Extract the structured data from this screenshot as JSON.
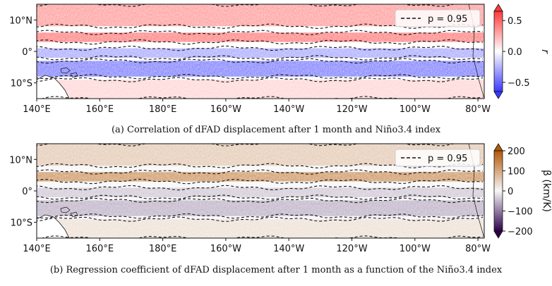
{
  "chart_data": [
    {
      "type": "heatmap",
      "panel_id": "a",
      "caption": "(a) Correlation of dFAD displacement after 1 month and Niño3.4 index",
      "x_ticks": [
        "140°E",
        "160°E",
        "180°E",
        "160°W",
        "140°W",
        "120°W",
        "100°W",
        "80°W"
      ],
      "x_tick_lon": [
        140,
        160,
        180,
        200,
        220,
        240,
        260,
        280
      ],
      "x_range": [
        140,
        282
      ],
      "y_ticks": [
        "10°N",
        "0°",
        "10°S"
      ],
      "y_tick_lat": [
        10,
        0,
        -10
      ],
      "y_range": [
        -15,
        15
      ],
      "legend_label": "p = 0.95",
      "colorbar": {
        "label": "r",
        "colormap": "bwr",
        "ticks": [
          "0.5",
          "0.0",
          "−0.5"
        ],
        "tick_values": [
          0.5,
          0.0,
          -0.5
        ],
        "range": [
          -0.65,
          0.65
        ],
        "extend": "both",
        "colors": {
          "low": "#3a3aff",
          "mid": "#ffffff",
          "high": "#ff3a3a"
        }
      },
      "field_bands": [
        {
          "lat_from": 8,
          "lat_to": 15,
          "value": 0.35
        },
        {
          "lat_from": 3,
          "lat_to": 6,
          "value": 0.45
        },
        {
          "lat_from": -2,
          "lat_to": 1,
          "value": -0.3
        },
        {
          "lat_from": -8,
          "lat_to": -3,
          "value": -0.45
        },
        {
          "lat_from": -15,
          "lat_to": -9,
          "value": 0.15
        }
      ]
    },
    {
      "type": "heatmap",
      "panel_id": "b",
      "caption": "(b) Regression coefficient of dFAD displacement after 1 month as a function of the Niño3.4 index",
      "x_ticks": [
        "140°E",
        "160°E",
        "180°E",
        "160°W",
        "140°W",
        "120°W",
        "100°W",
        "80°W"
      ],
      "x_tick_lon": [
        140,
        160,
        180,
        200,
        220,
        240,
        260,
        280
      ],
      "x_range": [
        140,
        282
      ],
      "y_ticks": [
        "10°N",
        "0°",
        "10°S"
      ],
      "y_tick_lat": [
        10,
        0,
        -10
      ],
      "y_range": [
        -15,
        15
      ],
      "legend_label": "p = 0.95",
      "colorbar": {
        "label": "β (km/K)",
        "colormap": "PuOr_r",
        "ticks": [
          "200",
          "100",
          "0",
          "−100",
          "−200"
        ],
        "tick_values": [
          200,
          100,
          0,
          -100,
          -200
        ],
        "range": [
          -200,
          200
        ],
        "extend": "both",
        "colors": {
          "low": "#2d004b",
          "mid": "#f7f7f7",
          "high": "#b35806"
        }
      },
      "field_bands": [
        {
          "lat_from": 8,
          "lat_to": 15,
          "value": 60
        },
        {
          "lat_from": 3,
          "lat_to": 6,
          "value": 130
        },
        {
          "lat_from": -2,
          "lat_to": 1,
          "value": -40
        },
        {
          "lat_from": -8,
          "lat_to": -3,
          "value": -60
        },
        {
          "lat_from": -15,
          "lat_to": -9,
          "value": 30
        }
      ]
    }
  ]
}
